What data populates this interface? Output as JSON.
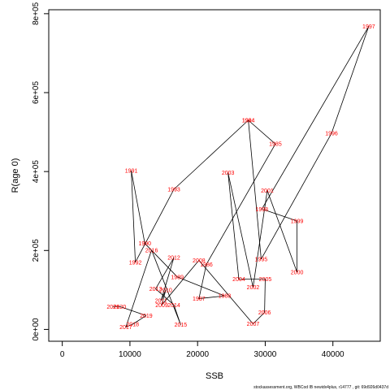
{
  "chart_data": {
    "type": "line",
    "title": "",
    "xlabel": "SSB",
    "ylabel": "R(age 0)",
    "xlim": [
      -2000,
      47000
    ],
    "ylim": [
      -30000,
      810000
    ],
    "x_ticks": [
      0,
      10000,
      20000,
      30000,
      40000
    ],
    "x_tick_labels": [
      "0",
      "10000",
      "20000",
      "30000",
      "40000"
    ],
    "y_ticks": [
      0,
      200000,
      400000,
      600000,
      800000
    ],
    "y_tick_labels": [
      "0e+00",
      "2e+05",
      "4e+05",
      "6e+05",
      "8e+05"
    ],
    "grid": false,
    "legend": "none",
    "line_color": "#000000",
    "label_color": "#ff0000",
    "series": [
      {
        "points": [
          {
            "year": "1984",
            "x": 27500,
            "y": 530000
          },
          {
            "year": "1985",
            "x": 31500,
            "y": 470000
          },
          {
            "year": "1986",
            "x": 21300,
            "y": 165000
          },
          {
            "year": "1987",
            "x": 20200,
            "y": 78000
          },
          {
            "year": "1988",
            "x": 24000,
            "y": 85000
          },
          {
            "year": "1989",
            "x": 17000,
            "y": 133000
          },
          {
            "year": "1990",
            "x": 12200,
            "y": 218000
          },
          {
            "year": "1991",
            "x": 10200,
            "y": 402000
          },
          {
            "year": "1992",
            "x": 10800,
            "y": 170000
          },
          {
            "year": "1993",
            "x": 16500,
            "y": 355000
          },
          {
            "year": "1994",
            "x": 27500,
            "y": 530000
          },
          {
            "year": "1995",
            "x": 29400,
            "y": 178000
          },
          {
            "year": "1996",
            "x": 39800,
            "y": 497000
          },
          {
            "year": "1997",
            "x": 45300,
            "y": 768000
          },
          {
            "year": "1998",
            "x": 29500,
            "y": 305000
          },
          {
            "year": "1999",
            "x": 34700,
            "y": 275000
          },
          {
            "year": "2000",
            "x": 34700,
            "y": 145000
          },
          {
            "year": "2001",
            "x": 30300,
            "y": 352000
          },
          {
            "year": "2002",
            "x": 28200,
            "y": 107000
          },
          {
            "year": "2003",
            "x": 24500,
            "y": 397000
          },
          {
            "year": "2004",
            "x": 26100,
            "y": 127000
          },
          {
            "year": "2005",
            "x": 30000,
            "y": 128000
          },
          {
            "year": "2006",
            "x": 29900,
            "y": 43000
          },
          {
            "year": "2007",
            "x": 28200,
            "y": 14000
          },
          {
            "year": "2008",
            "x": 20200,
            "y": 175000
          },
          {
            "year": "2009",
            "x": 14700,
            "y": 62000
          },
          {
            "year": "2010",
            "x": 15300,
            "y": 100000
          },
          {
            "year": "2011",
            "x": 14600,
            "y": 73000
          },
          {
            "year": "2012",
            "x": 16500,
            "y": 182000
          },
          {
            "year": "2013",
            "x": 13800,
            "y": 103000
          },
          {
            "year": "2014",
            "x": 16500,
            "y": 62000
          },
          {
            "year": "2015",
            "x": 17500,
            "y": 12000
          },
          {
            "year": "2016",
            "x": 13200,
            "y": 201000
          },
          {
            "year": "2017",
            "x": 9400,
            "y": 6000
          },
          {
            "year": "2018",
            "x": 10400,
            "y": 13000
          },
          {
            "year": "2019",
            "x": 12400,
            "y": 35000
          },
          {
            "year": "2020",
            "x": 8500,
            "y": 58000
          },
          {
            "year": "2021",
            "x": 7500,
            "y": 58000
          }
        ]
      }
    ]
  },
  "footer": {
    "note": "stockassessment.org,  WBCod  IB  newidx4plus,  r14777 ,  git:  69d926d0437d"
  }
}
